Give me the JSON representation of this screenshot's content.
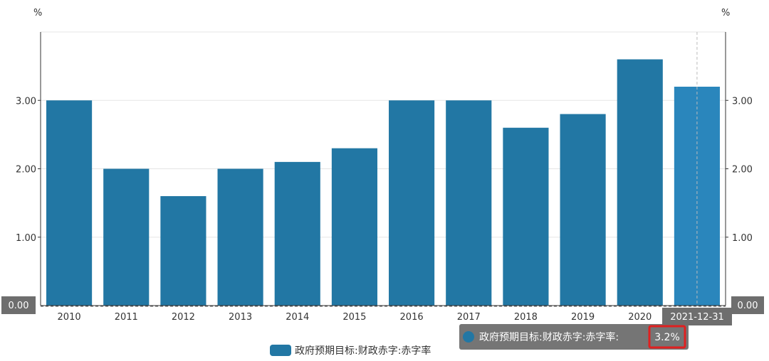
{
  "chart_data": {
    "type": "bar",
    "categories": [
      "2010",
      "2011",
      "2012",
      "2013",
      "2014",
      "2015",
      "2016",
      "2017",
      "2018",
      "2019",
      "2020",
      "2021-12-31"
    ],
    "series": [
      {
        "name": "政府预期目标:财政赤字:赤字率",
        "values": [
          3.0,
          2.0,
          1.6,
          2.0,
          2.1,
          2.3,
          3.0,
          3.0,
          2.6,
          2.8,
          3.6,
          3.2
        ]
      }
    ],
    "ylim": [
      0,
      4
    ],
    "yticks": [
      "0.00",
      "1.00",
      "2.00",
      "3.00"
    ],
    "yunit_left": "%",
    "yunit_right": "%",
    "grid": true,
    "legend_position": "bottom",
    "colors": {
      "bar": "#2277a4",
      "bar_highlight": "#2a86bc",
      "badge": "#6e6e6e",
      "highlight_box": "#e02020"
    },
    "highlight_index": 11,
    "axis_pointer": {
      "x_label": "2021-12-31",
      "y_label_left": "0.00",
      "y_label_right": "0.00"
    },
    "tooltip": {
      "series": "政府预期目标:财政赤字:赤字率:",
      "value": "3.2%"
    }
  }
}
